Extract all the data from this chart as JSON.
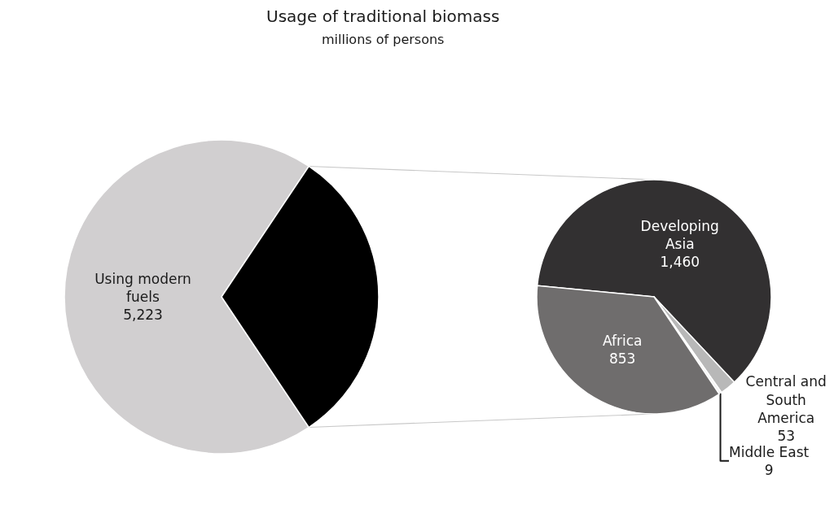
{
  "chart_data": [
    {
      "type": "pie",
      "title": "Usage of traditional biomass",
      "subtitle": "millions of persons",
      "categories": [
        "Using modern fuels",
        null
      ],
      "values": [
        5223,
        2375
      ],
      "value_labels": [
        "5,223",
        null
      ],
      "colors": [
        "#d1cfd0",
        "#000000"
      ]
    },
    {
      "type": "pie",
      "categories": [
        "Developing Asia",
        "Central and South America",
        "Middle East",
        "Africa"
      ],
      "values": [
        1460,
        53,
        9,
        853
      ],
      "value_labels": [
        "1,460",
        "53",
        "9",
        "853"
      ],
      "colors": [
        "#323031",
        "#b8b8b8",
        "#f4f4f4",
        "#6f6d6d"
      ]
    }
  ]
}
